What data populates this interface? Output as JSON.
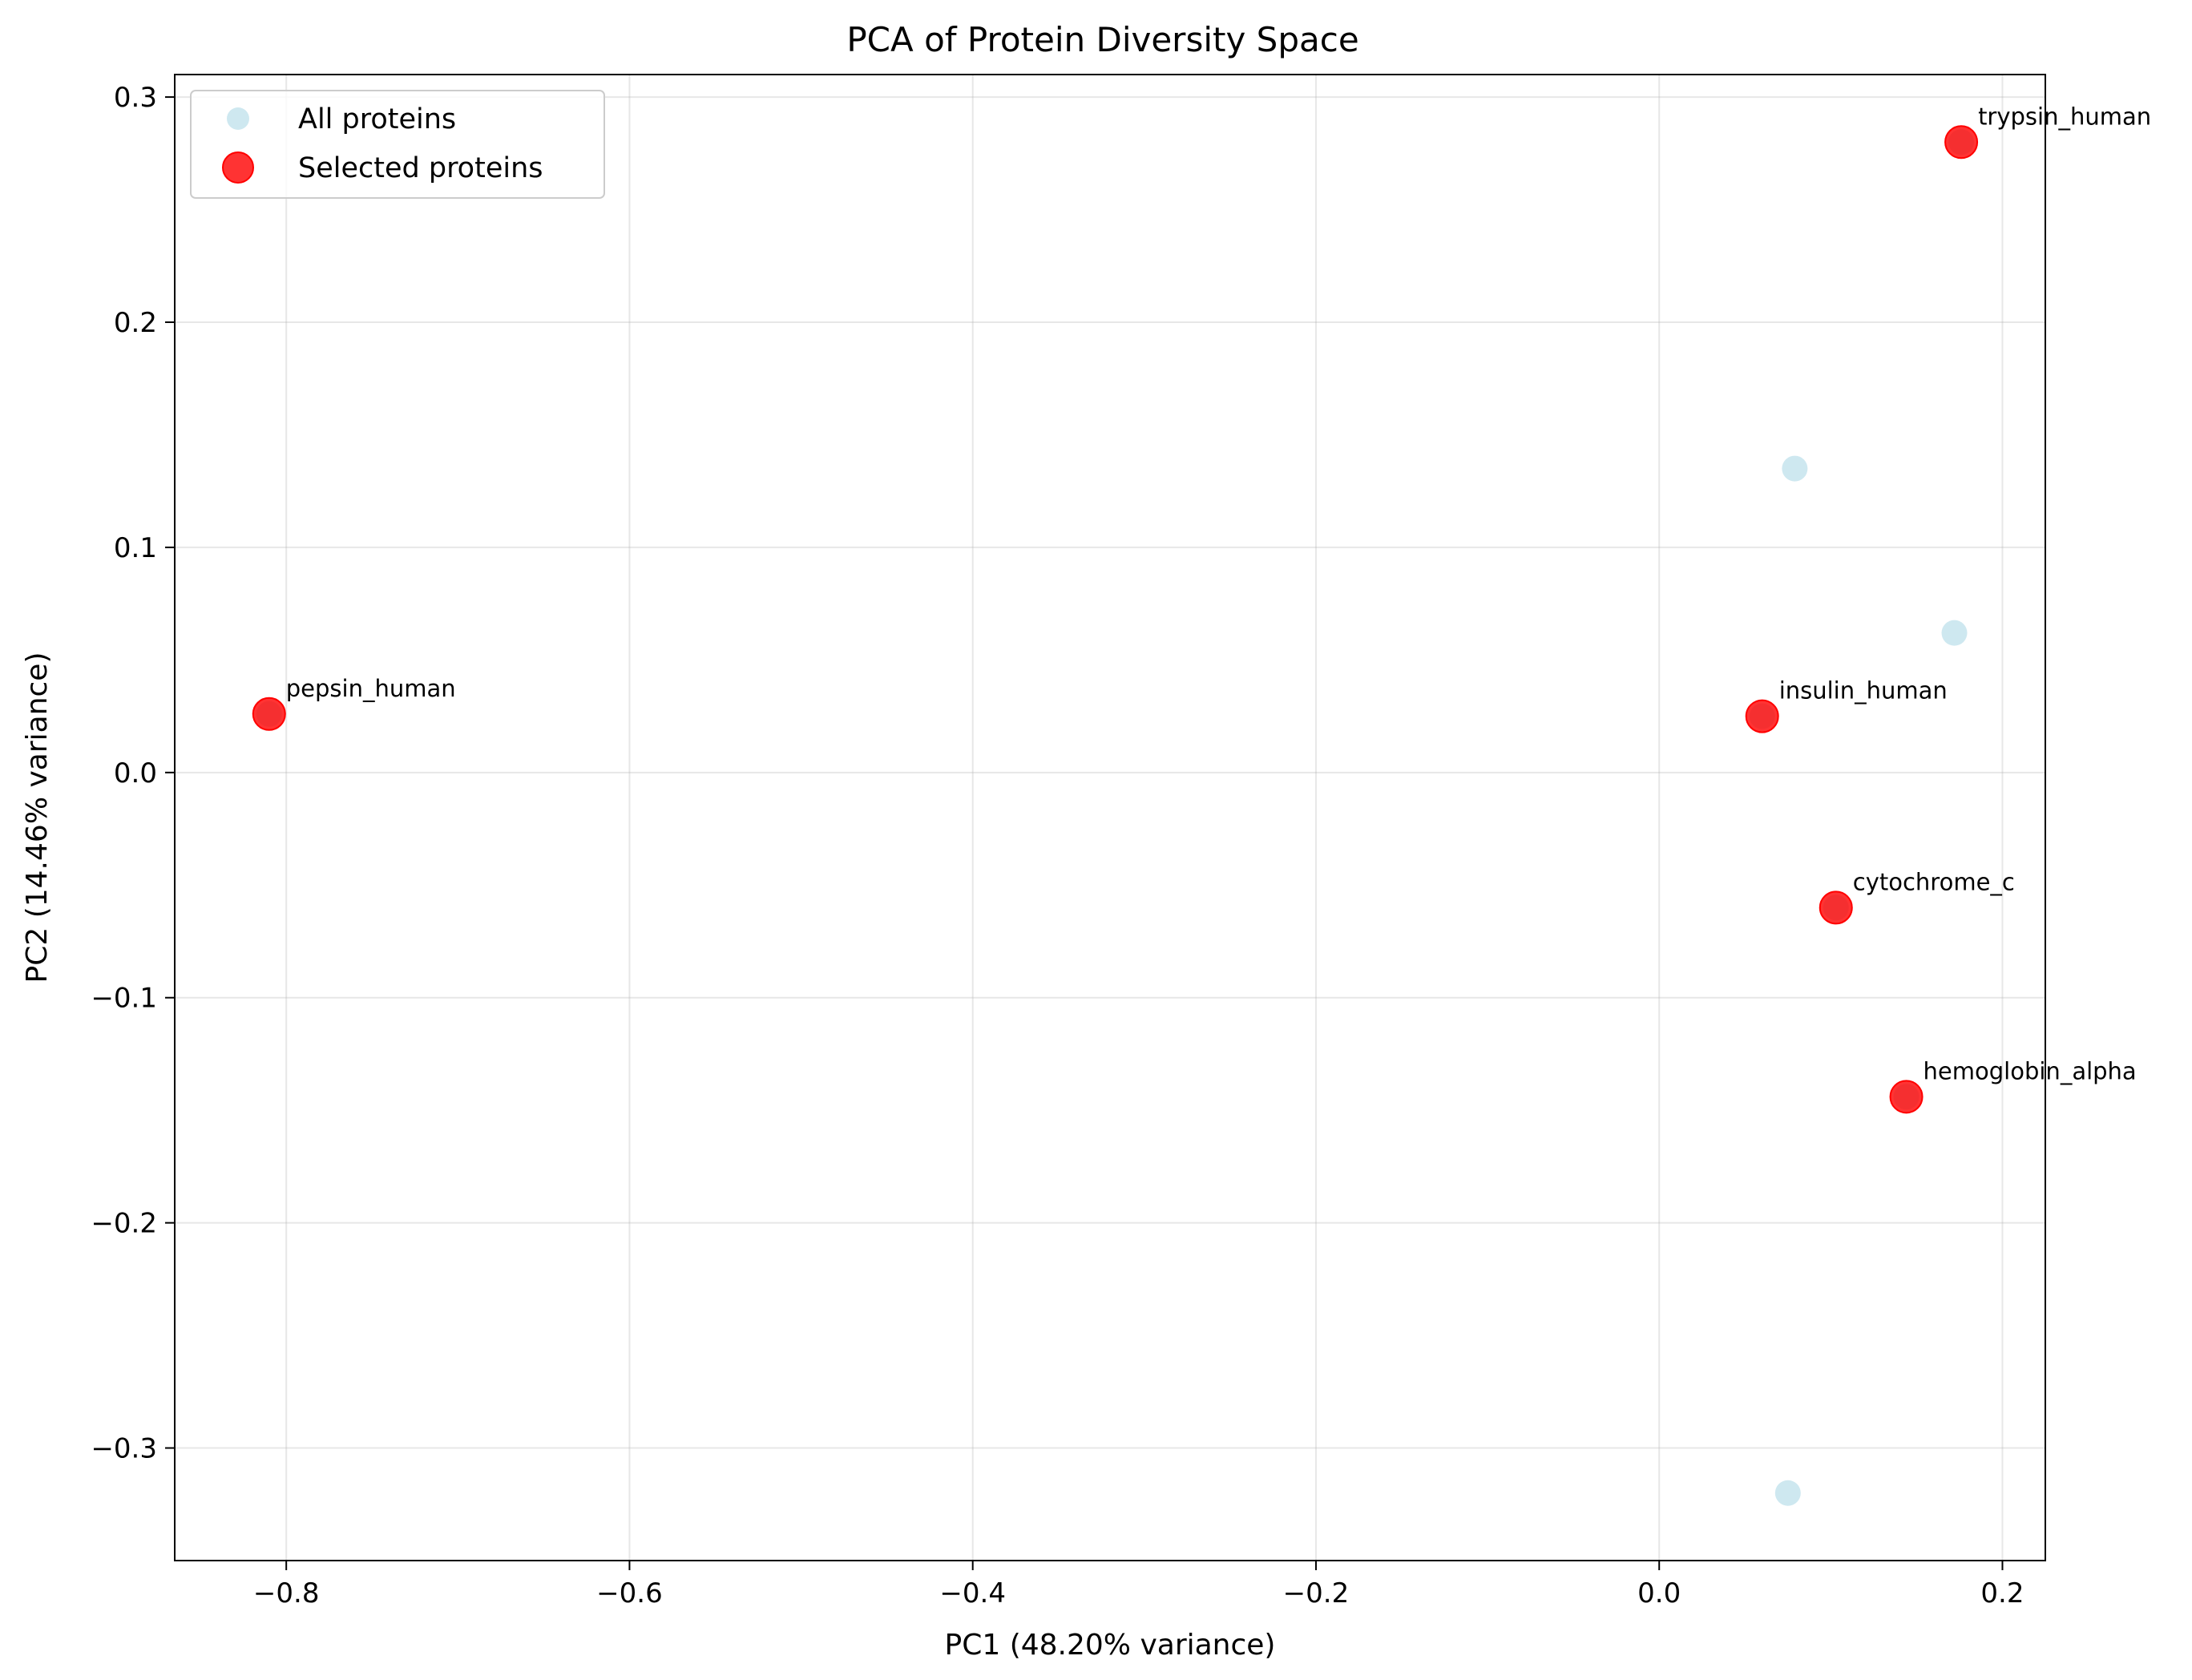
{
  "chart_data": {
    "type": "scatter",
    "title": "PCA of Protein Diversity Space",
    "xlabel": "PC1 (48.20% variance)",
    "ylabel": "PC2 (14.46% variance)",
    "xlim": [
      -0.865,
      0.225
    ],
    "ylim": [
      -0.35,
      0.31
    ],
    "xticks": [
      -0.8,
      -0.6,
      -0.4,
      -0.2,
      0.0,
      0.2
    ],
    "xtick_labels": [
      "−0.8",
      "−0.6",
      "−0.4",
      "−0.2",
      "0.0",
      "0.2"
    ],
    "yticks": [
      -0.3,
      -0.2,
      -0.1,
      0.0,
      0.1,
      0.2,
      0.3
    ],
    "ytick_labels": [
      "−0.3",
      "−0.2",
      "−0.1",
      "0.0",
      "0.1",
      "0.2",
      "0.3"
    ],
    "grid": true,
    "legend_position": "top-left",
    "series": [
      {
        "name": "All proteins",
        "color": "#add8e6",
        "points": [
          {
            "x": 0.079,
            "y": 0.135
          },
          {
            "x": 0.172,
            "y": 0.062
          },
          {
            "x": 0.075,
            "y": -0.32
          },
          {
            "x": -0.81,
            "y": 0.026
          },
          {
            "x": 0.06,
            "y": 0.025
          },
          {
            "x": 0.103,
            "y": -0.06
          },
          {
            "x": 0.144,
            "y": -0.144
          },
          {
            "x": 0.176,
            "y": 0.28
          }
        ]
      },
      {
        "name": "Selected proteins",
        "color": "#ff0000",
        "points": [
          {
            "x": -0.81,
            "y": 0.026,
            "label": "pepsin_human"
          },
          {
            "x": 0.06,
            "y": 0.025,
            "label": "insulin_human"
          },
          {
            "x": 0.103,
            "y": -0.06,
            "label": "cytochrome_c"
          },
          {
            "x": 0.144,
            "y": -0.144,
            "label": "hemoglobin_alpha"
          },
          {
            "x": 0.176,
            "y": 0.28,
            "label": "trypsin_human"
          }
        ]
      }
    ]
  }
}
